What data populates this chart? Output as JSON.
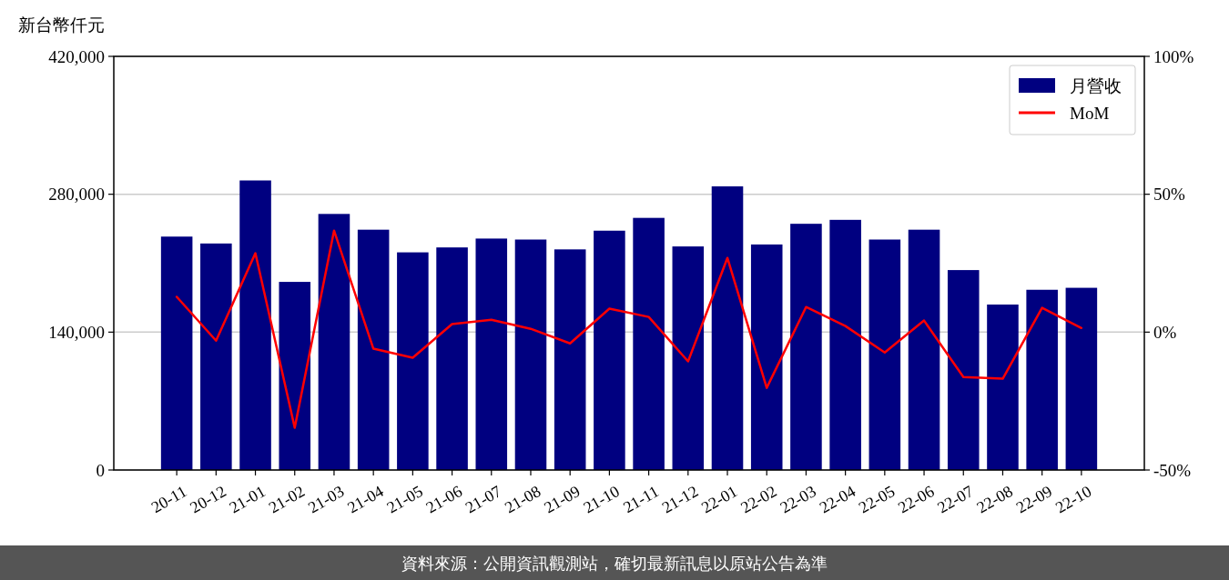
{
  "chart_data": {
    "type": "bar",
    "ylabel": "新台幣仟元",
    "categories": [
      "20-11",
      "20-12",
      "21-01",
      "21-02",
      "21-03",
      "21-04",
      "21-05",
      "21-06",
      "21-07",
      "21-08",
      "21-09",
      "21-10",
      "21-11",
      "21-12",
      "22-01",
      "22-02",
      "22-03",
      "22-04",
      "22-05",
      "22-06",
      "22-07",
      "22-08",
      "22-09",
      "22-10"
    ],
    "series": [
      {
        "name": "月營收",
        "color": "#000080",
        "values": [
          237000,
          230000,
          294000,
          191000,
          260000,
          244000,
          221000,
          226000,
          235000,
          234000,
          224000,
          243000,
          256000,
          227000,
          288000,
          229000,
          250000,
          254000,
          234000,
          244000,
          203000,
          168000,
          183000,
          185000
        ]
      },
      {
        "name": "MoM",
        "type": "line",
        "axis": "y2",
        "color": "#ff0000",
        "values": [
          12.8,
          -3.1,
          28.6,
          -34.7,
          36.8,
          -6.0,
          -9.3,
          2.9,
          4.5,
          1.2,
          -4.1,
          8.5,
          5.5,
          -10.6,
          26.9,
          -20.2,
          9.1,
          2.2,
          -7.4,
          4.2,
          -16.3,
          -16.9,
          8.8,
          1.5
        ]
      }
    ],
    "ylim": [
      0,
      420000
    ],
    "yticks": [
      0,
      {
        "value": 140000,
        "label": "140,000"
      },
      {
        "value": 280000,
        "label": "280,000"
      },
      {
        "value": 420000,
        "label": "420,000"
      }
    ],
    "y2lim": [
      -50,
      100
    ],
    "y2ticks": [
      {
        "value": -50,
        "label": "-50%"
      },
      {
        "value": 0,
        "label": "0%"
      },
      {
        "value": 50,
        "label": "50%"
      },
      {
        "value": 100,
        "label": "100%"
      }
    ],
    "grid": "y",
    "legend": "top right",
    "annotations": [
      "資料來源：公開資訊觀測站，確切最新訊息以原站公告為準"
    ]
  }
}
